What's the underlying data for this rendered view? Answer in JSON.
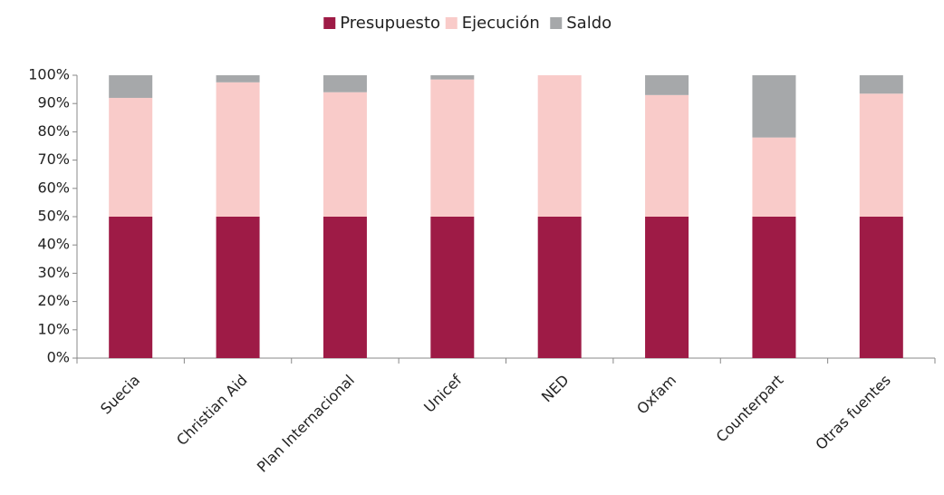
{
  "chart_data": {
    "type": "stacked_bar",
    "categories": [
      "Suecia",
      "Christian Aid",
      "Plan Internacional",
      "Unicef",
      "NED",
      "Oxfam",
      "Counterpart",
      "Otras fuentes"
    ],
    "series": [
      {
        "name": "Presupuesto",
        "color": "#9e1b46",
        "values": [
          50,
          50,
          50,
          50,
          50,
          50,
          50,
          50
        ]
      },
      {
        "name": "Ejecución",
        "color": "#f9cbc9",
        "values": [
          42,
          47.5,
          44,
          48.5,
          50,
          43,
          28,
          43.5
        ]
      },
      {
        "name": "Saldo",
        "color": "#a6a8aa",
        "values": [
          8,
          2.5,
          6,
          1.5,
          0,
          7,
          22,
          6.5
        ]
      }
    ],
    "ylim": [
      0,
      100
    ],
    "yticks": [
      {
        "value": 0,
        "label": "0%"
      },
      {
        "value": 10,
        "label": "10%"
      },
      {
        "value": 20,
        "label": "20%"
      },
      {
        "value": 30,
        "label": "30%"
      },
      {
        "value": 40,
        "label": "40%"
      },
      {
        "value": 50,
        "label": "50%"
      },
      {
        "value": 60,
        "label": "60%"
      },
      {
        "value": 70,
        "label": "70%"
      },
      {
        "value": 80,
        "label": "80%"
      },
      {
        "value": 90,
        "label": "90%"
      },
      {
        "value": 100,
        "label": "100%"
      }
    ],
    "grid": false,
    "legend": "top"
  }
}
